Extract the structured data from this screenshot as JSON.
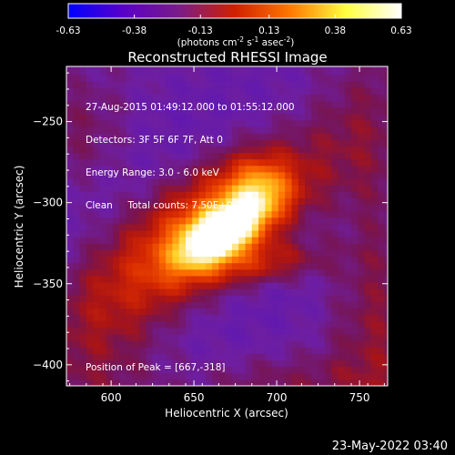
{
  "colorbar": {
    "ticks": [
      "-0.63",
      "-0.38",
      "-0.13",
      "0.13",
      "0.38",
      "0.63"
    ],
    "tick_values": [
      -0.63,
      -0.38,
      -0.13,
      0.13,
      0.38,
      0.63
    ],
    "units_main": "(photons cm",
    "units_sup1": "-2",
    "units_mid1": " s",
    "units_sup2": "-1",
    "units_mid2": " asec",
    "units_sup3": "-2",
    "units_end": ")",
    "colors": [
      "#0000ff",
      "#5a00c8",
      "#7a1c88",
      "#d02000",
      "#ff7800",
      "#ffff40",
      "#ffffff"
    ]
  },
  "title": "Reconstructed RHESSI Image",
  "info_lines": [
    "27-Aug-2015 01:49:12.000 to 01:55:12.000",
    "Detectors: 3F 5F 6F 7F, Att 0",
    "Energy Range: 3.0 - 6.0 keV",
    "Clean     Total counts: 7.50E+04"
  ],
  "peak_label": "Position of Peak = [667,-318]",
  "footer_timestamp": "23-May-2022 03:40",
  "chart_data": {
    "type": "heatmap",
    "title": "Reconstructed RHESSI Image",
    "xlabel": "Heliocentric X (arcsec)",
    "ylabel": "Heliocentric Y (arcsec)",
    "xlim": [
      573,
      767
    ],
    "ylim": [
      -413,
      -216
    ],
    "xticks": [
      600,
      650,
      700,
      750
    ],
    "yticks": [
      -250,
      -300,
      -350,
      -400
    ],
    "colorbar_range": [
      -0.63,
      0.63
    ],
    "peak_position": [
      667,
      -318
    ],
    "grid": false
  }
}
